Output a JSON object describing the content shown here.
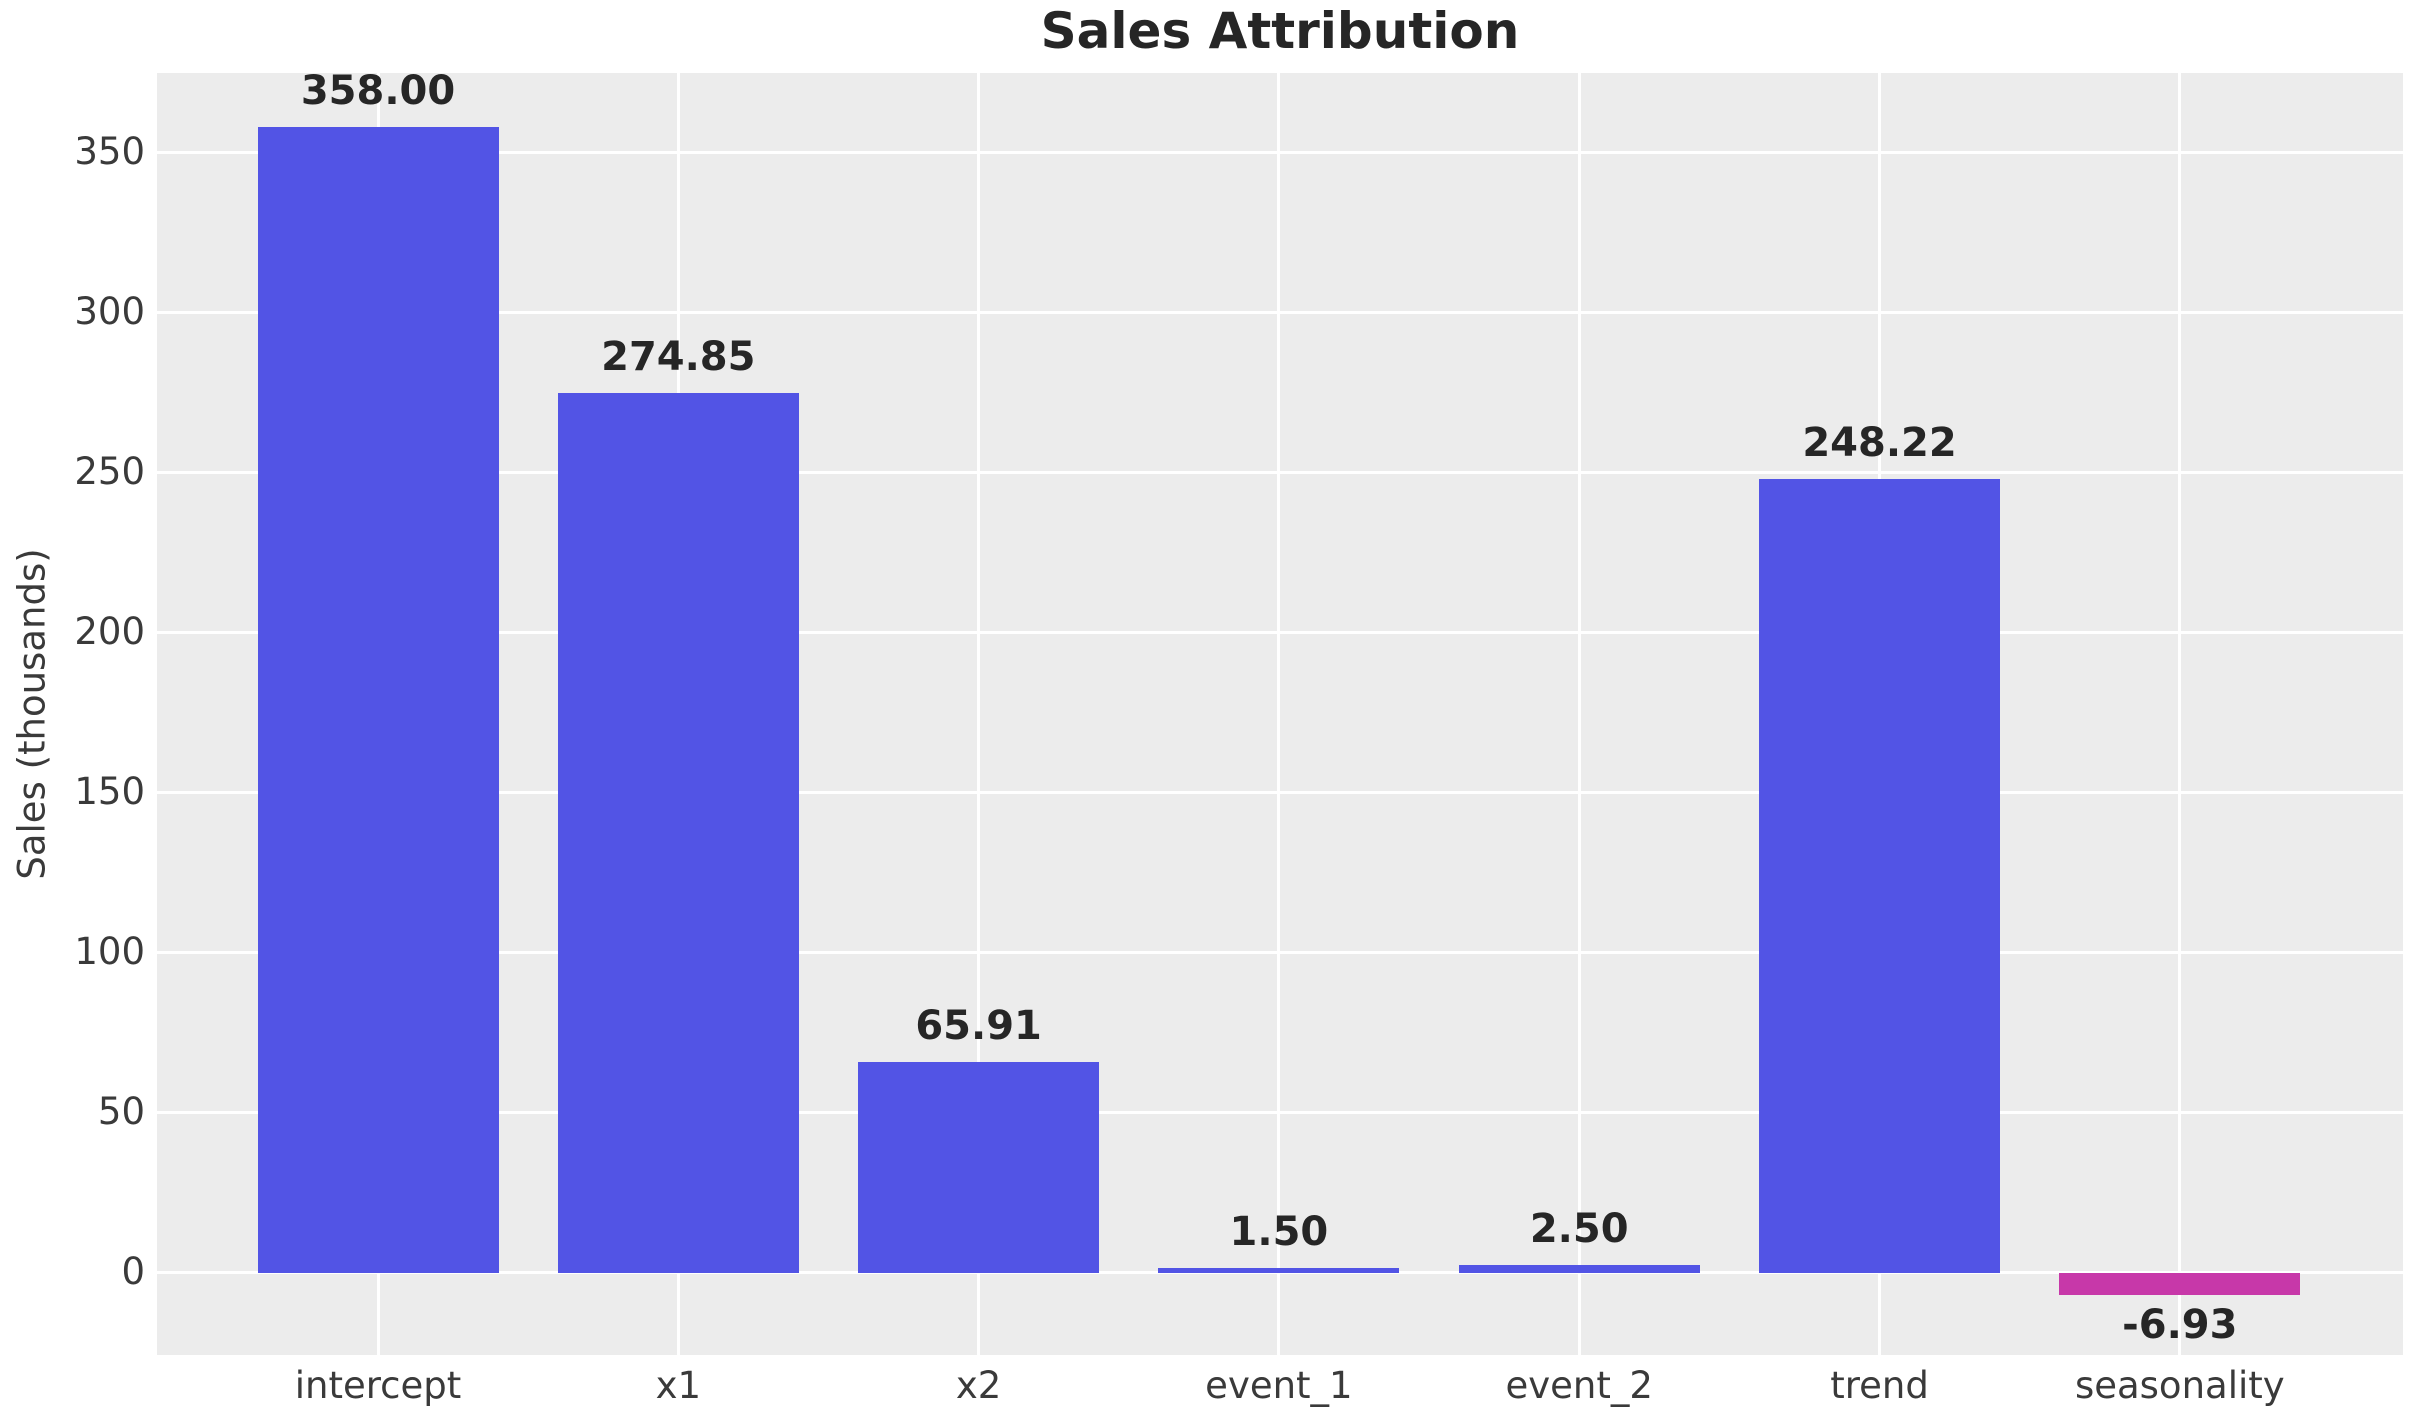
{
  "title": "Sales Attribution",
  "ylabel": "Sales (thousands)",
  "chart_data": {
    "type": "bar",
    "title": "Sales Attribution",
    "xlabel": "",
    "ylabel": "Sales (thousands)",
    "categories": [
      "intercept",
      "x1",
      "x2",
      "event_1",
      "event_2",
      "trend",
      "seasonality"
    ],
    "values": [
      358.0,
      274.85,
      65.91,
      1.5,
      2.5,
      248.22,
      -6.93
    ],
    "value_labels": [
      "358.00",
      "274.85",
      "65.91",
      "1.50",
      "2.50",
      "248.22",
      "-6.93"
    ],
    "y_ticks": [
      0,
      50,
      100,
      150,
      200,
      250,
      300,
      350
    ],
    "ylim": [
      -25.65,
      375
    ],
    "grid": true,
    "legend": false,
    "colors": {
      "positive_bar": "#5254e5",
      "negative_bar": "#c738a9",
      "plot_background": "#ececec",
      "gridline": "#ffffff",
      "title_text": "#262626",
      "value_label_text": "#262626",
      "tick_text": "#3a3a3a"
    }
  }
}
